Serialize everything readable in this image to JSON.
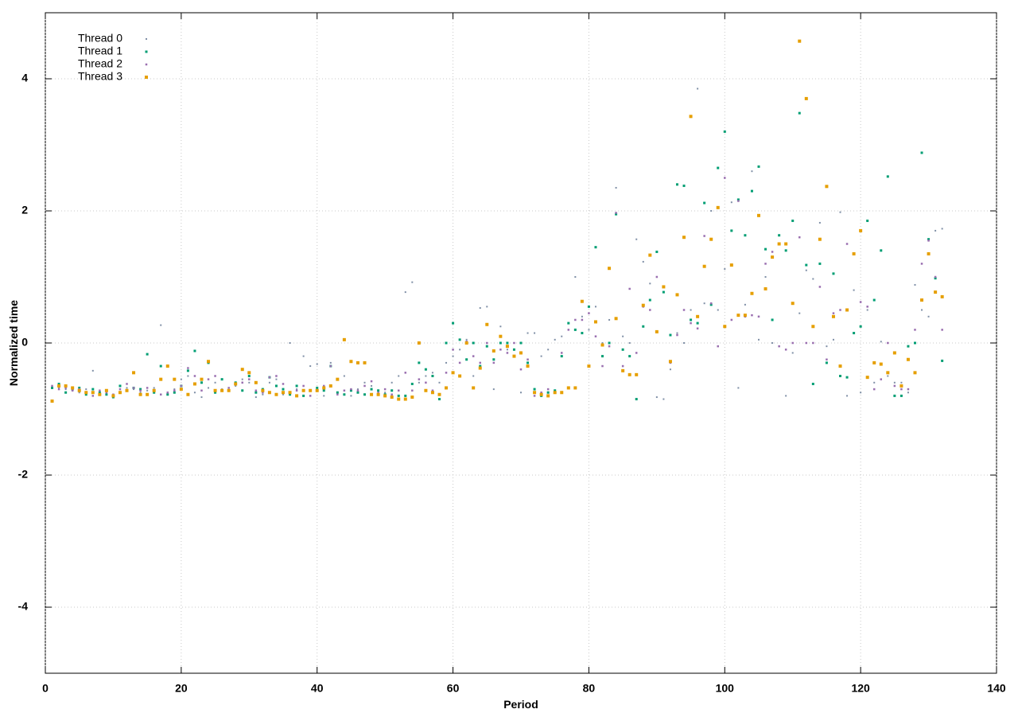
{
  "chart_data": {
    "type": "scatter",
    "xlabel": "Period",
    "ylabel": "Normalized time",
    "xlim": [
      0,
      140
    ],
    "ylim": [
      -5,
      5
    ],
    "xticks": [
      0,
      20,
      40,
      60,
      80,
      100,
      120,
      140
    ],
    "yticks": [
      -4,
      -2,
      0,
      2,
      4
    ],
    "grid": true,
    "legend": "top-left",
    "x": [
      1,
      2,
      3,
      4,
      5,
      6,
      7,
      8,
      9,
      10,
      11,
      12,
      13,
      14,
      15,
      16,
      17,
      18,
      19,
      20,
      21,
      22,
      23,
      24,
      25,
      26,
      27,
      28,
      29,
      30,
      31,
      32,
      33,
      34,
      35,
      36,
      37,
      38,
      39,
      40,
      41,
      42,
      43,
      44,
      45,
      46,
      47,
      48,
      49,
      50,
      51,
      52,
      53,
      54,
      55,
      56,
      57,
      58,
      59,
      60,
      61,
      62,
      63,
      64,
      65,
      66,
      67,
      68,
      69,
      70,
      71,
      72,
      73,
      74,
      75,
      76,
      77,
      78,
      79,
      80,
      81,
      82,
      83,
      84,
      85,
      86,
      87,
      88,
      89,
      90,
      91,
      92,
      93,
      94,
      95,
      96,
      97,
      98,
      99,
      100,
      101,
      102,
      103,
      104,
      105,
      106,
      107,
      108,
      109,
      110,
      111,
      112,
      113,
      114,
      115,
      116,
      117,
      118,
      119,
      120,
      121,
      122,
      123,
      124,
      125,
      126,
      127,
      128,
      129,
      130,
      131,
      132
    ],
    "series": [
      {
        "name": "Thread 0",
        "color": "#7f8fa6",
        "values": [
          -0.65,
          -0.68,
          -0.7,
          -0.72,
          -0.75,
          -0.7,
          -0.42,
          -0.75,
          -0.72,
          -0.78,
          -0.75,
          -0.68,
          -0.7,
          -0.75,
          -0.72,
          -0.68,
          0.27,
          -0.78,
          -0.7,
          -0.55,
          -0.5,
          -0.75,
          -0.82,
          -0.68,
          -0.6,
          -0.7,
          -0.72,
          -0.65,
          -0.55,
          -0.6,
          -0.82,
          -0.78,
          -0.6,
          -0.55,
          -0.78,
          0.0,
          -0.7,
          -0.2,
          -0.35,
          -0.32,
          -0.8,
          -0.3,
          -0.75,
          -0.5,
          -0.8,
          -0.7,
          -0.6,
          -0.65,
          -0.72,
          -0.75,
          -0.6,
          -0.5,
          0.77,
          0.92,
          -0.6,
          -0.5,
          -0.45,
          -0.6,
          -0.3,
          -0.2,
          -0.1,
          0.05,
          -0.5,
          0.53,
          0.55,
          -0.7,
          0.25,
          -0.1,
          -0.2,
          -0.75,
          0.15,
          0.15,
          -0.2,
          -0.1,
          0.05,
          0.1,
          0.3,
          1.0,
          0.4,
          0.2,
          0.55,
          0.0,
          0.35,
          2.35,
          0.1,
          0.0,
          1.57,
          1.23,
          0.9,
          -0.82,
          -0.85,
          -0.4,
          0.15,
          0.0,
          0.5,
          3.85,
          0.6,
          2.0,
          0.5,
          1.12,
          2.13,
          -0.68,
          0.58,
          2.6,
          0.05,
          1.0,
          0.0,
          -0.05,
          -0.8,
          -0.15,
          0.45,
          1.1,
          0.97,
          1.82,
          -0.05,
          0.05,
          1.98,
          -0.8,
          0.8,
          -0.75,
          0.5,
          -0.6,
          0.02,
          -0.5,
          -0.6,
          -0.6,
          -0.75,
          0.88,
          0.5,
          0.4,
          1.7,
          1.73
        ]
      },
      {
        "name": "Thread 1",
        "color": "#009e73",
        "values": [
          -0.68,
          -0.62,
          -0.75,
          -0.7,
          -0.68,
          -0.78,
          -0.7,
          -0.75,
          -0.78,
          -0.82,
          -0.65,
          -0.72,
          -0.68,
          -0.7,
          -0.17,
          -0.75,
          -0.35,
          -0.78,
          -0.75,
          -0.65,
          -0.42,
          -0.12,
          -0.6,
          -0.3,
          -0.75,
          -0.55,
          -0.72,
          -0.6,
          -0.72,
          -0.5,
          -0.75,
          -0.7,
          -0.52,
          -0.65,
          -0.7,
          -0.78,
          -0.65,
          -0.8,
          -0.72,
          -0.68,
          -0.72,
          -0.35,
          -0.75,
          -0.78,
          -0.72,
          -0.75,
          -0.78,
          -0.7,
          -0.72,
          -0.78,
          -0.72,
          -0.8,
          -0.8,
          -0.62,
          -0.3,
          -0.4,
          -0.5,
          -0.85,
          0.0,
          0.3,
          0.05,
          -0.25,
          0.0,
          -0.35,
          -0.05,
          -0.25,
          0.0,
          0.0,
          -0.1,
          0.0,
          -0.3,
          -0.7,
          -0.8,
          -0.75,
          -0.72,
          -0.2,
          0.3,
          0.2,
          0.15,
          0.55,
          1.45,
          -0.2,
          0.0,
          1.95,
          -0.1,
          -0.2,
          -0.85,
          0.25,
          0.65,
          1.38,
          0.77,
          0.12,
          2.4,
          2.38,
          0.35,
          0.3,
          2.12,
          0.58,
          2.65,
          3.2,
          1.7,
          2.17,
          1.63,
          2.3,
          2.67,
          1.42,
          0.35,
          1.63,
          1.4,
          1.85,
          3.48,
          1.18,
          -0.62,
          1.2,
          -0.3,
          1.05,
          -0.5,
          -0.52,
          0.15,
          0.25,
          1.85,
          0.65,
          1.4,
          2.52,
          -0.8,
          -0.8,
          -0.05,
          0.0,
          2.88,
          1.57,
          0.98,
          -0.27
        ]
      },
      {
        "name": "Thread 2",
        "color": "#9a6fb0",
        "values": [
          -0.65,
          -0.7,
          -0.68,
          -0.72,
          -0.7,
          -0.75,
          -0.8,
          -0.72,
          -0.75,
          -0.78,
          -0.7,
          -0.62,
          -0.68,
          -0.72,
          -0.68,
          -0.72,
          -0.78,
          -0.75,
          -0.72,
          -0.65,
          -0.38,
          -0.5,
          -0.72,
          -0.55,
          -0.5,
          -0.72,
          -0.68,
          -0.62,
          -0.6,
          -0.55,
          -0.72,
          -0.75,
          -0.52,
          -0.5,
          -0.62,
          -0.75,
          -0.72,
          -0.65,
          -0.8,
          -0.72,
          -0.65,
          -0.35,
          -0.78,
          -0.72,
          -0.7,
          -0.72,
          -0.65,
          -0.58,
          -0.75,
          -0.7,
          -0.78,
          -0.72,
          -0.45,
          -0.72,
          -0.55,
          -0.6,
          -0.72,
          -0.78,
          -0.45,
          -0.1,
          -0.3,
          0.02,
          -0.2,
          -0.3,
          0.0,
          -0.3,
          -0.1,
          -0.15,
          0.0,
          -0.4,
          -0.25,
          -0.8,
          -0.75,
          -0.7,
          -0.75,
          -0.15,
          0.2,
          0.35,
          0.35,
          0.45,
          0.1,
          -0.35,
          -0.05,
          1.97,
          -0.35,
          0.82,
          -0.15,
          0.55,
          0.5,
          1.0,
          0.85,
          -0.3,
          0.12,
          0.5,
          0.3,
          0.22,
          1.62,
          0.6,
          -0.05,
          2.5,
          0.35,
          2.15,
          0.4,
          0.42,
          0.4,
          1.2,
          1.38,
          -0.05,
          -0.1,
          0.0,
          1.6,
          0.0,
          0.0,
          0.85,
          -0.25,
          0.45,
          0.5,
          1.5,
          1.35,
          0.62,
          0.55,
          -0.7,
          -0.55,
          0.0,
          -0.65,
          -0.7,
          -0.7,
          0.2,
          1.2,
          1.55,
          1.0,
          0.2
        ]
      },
      {
        "name": "Thread 3",
        "color": "#e69f00",
        "values": [
          -0.88,
          -0.65,
          -0.65,
          -0.68,
          -0.72,
          -0.75,
          -0.75,
          -0.78,
          -0.72,
          -0.8,
          -0.75,
          -0.72,
          -0.45,
          -0.78,
          -0.78,
          -0.72,
          -0.55,
          -0.35,
          -0.55,
          -0.7,
          -0.78,
          -0.62,
          -0.55,
          -0.28,
          -0.72,
          -0.72,
          -0.72,
          -0.62,
          -0.4,
          -0.45,
          -0.6,
          -0.72,
          -0.75,
          -0.78,
          -0.75,
          -0.75,
          -0.8,
          -0.72,
          -0.72,
          -0.72,
          -0.68,
          -0.65,
          -0.55,
          0.05,
          -0.28,
          -0.3,
          -0.3,
          -0.78,
          -0.78,
          -0.8,
          -0.82,
          -0.85,
          -0.85,
          -0.82,
          0.0,
          -0.72,
          -0.75,
          -0.78,
          -0.68,
          -0.45,
          -0.5,
          0.0,
          -0.68,
          -0.38,
          0.28,
          -0.12,
          0.1,
          -0.05,
          -0.2,
          -0.15,
          -0.35,
          -0.75,
          -0.78,
          -0.8,
          -0.75,
          -0.75,
          -0.68,
          -0.68,
          0.63,
          -0.35,
          0.32,
          -0.03,
          1.13,
          0.37,
          -0.42,
          -0.48,
          -0.48,
          0.57,
          1.33,
          0.17,
          0.85,
          -0.28,
          0.73,
          1.6,
          3.43,
          0.4,
          1.16,
          1.57,
          2.05,
          0.25,
          1.18,
          0.42,
          0.42,
          0.75,
          1.93,
          0.82,
          1.3,
          1.5,
          1.5,
          0.6,
          4.57,
          3.7,
          0.25,
          1.57,
          2.37,
          0.4,
          -0.35,
          0.5,
          1.35,
          1.7,
          -0.52,
          -0.3,
          -0.32,
          -0.45,
          -0.15,
          -0.65,
          -0.25,
          -0.45,
          0.65,
          1.35,
          0.77,
          0.7
        ]
      }
    ]
  }
}
